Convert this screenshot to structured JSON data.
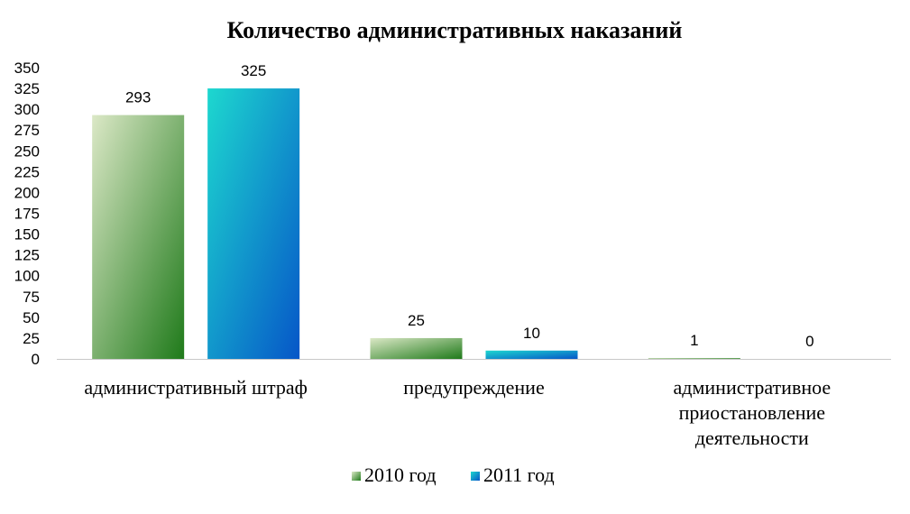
{
  "chart_data": {
    "type": "bar",
    "title": "Количество административных наказаний",
    "xlabel": "",
    "ylabel": "",
    "categories": [
      [
        "административный штраф"
      ],
      [
        "предупреждение"
      ],
      [
        "административное",
        "приостановление",
        "деятельности"
      ]
    ],
    "series": [
      {
        "name": "2010 год",
        "values": [
          293,
          25,
          1
        ],
        "color_light": "#dbe8c6",
        "color_dark": "#1f7a1a"
      },
      {
        "name": "2011 год",
        "values": [
          325,
          10,
          0
        ],
        "color_light": "#1dd8cf",
        "color_dark": "#0656c8"
      }
    ],
    "ylim": [
      0,
      350
    ],
    "yticks": [
      0,
      25,
      50,
      75,
      100,
      125,
      150,
      175,
      200,
      225,
      250,
      275,
      300,
      325,
      350
    ],
    "grid": false,
    "legend_position": "bottom",
    "data_labels": true
  }
}
